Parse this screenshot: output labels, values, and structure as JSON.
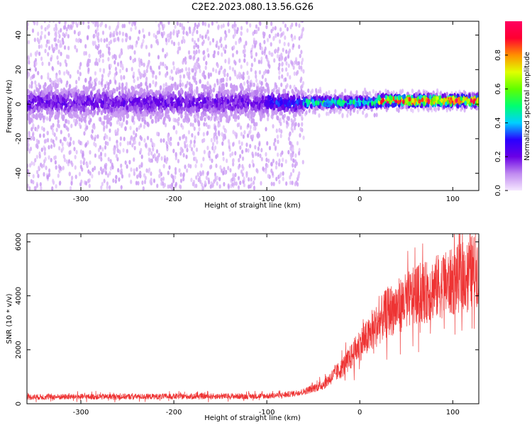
{
  "figure": {
    "title": "C2E2.2023.080.13.56.G26"
  },
  "chart_data": [
    {
      "type": "heatmap",
      "xlabel": "Height of straight line (km)",
      "ylabel": "Frequency (Hz)",
      "xlim": [
        -358,
        128
      ],
      "ylim": [
        -50,
        48
      ],
      "x_ticks": [
        -300,
        -200,
        -100,
        0,
        100
      ],
      "y_ticks": [
        -40,
        -20,
        0,
        20,
        40
      ],
      "colorbar": {
        "label": "Normalized spectral amplitude",
        "range": [
          0,
          1
        ],
        "ticks": [
          0.0,
          0.2,
          0.4,
          0.6,
          0.8
        ],
        "colormap": [
          "#f6e8ff",
          "#c08af0",
          "#6a00e6",
          "#2a00ff",
          "#00d0ff",
          "#00ff70",
          "#60ff00",
          "#e0ff00",
          "#ff9000",
          "#ff0030",
          "#ff0060"
        ]
      },
      "regions": [
        {
          "x": [
            -358,
            -100
          ],
          "center_freq": 1,
          "core_halfwidth": 8,
          "scatter_halfwidth": 50,
          "core_amplitude": 0.2
        },
        {
          "x": [
            -100,
            -60
          ],
          "center_freq": 1,
          "core_halfwidth": 6,
          "scatter_halfwidth": 48,
          "core_amplitude": 0.3
        },
        {
          "x": [
            -60,
            20
          ],
          "center_freq": 1,
          "core_halfwidth": 3,
          "scatter_halfwidth": 8,
          "core_amplitude": 0.5
        },
        {
          "x": [
            20,
            128
          ],
          "center_freq": 2,
          "core_halfwidth": 3,
          "scatter_halfwidth": 6,
          "core_amplitude": 0.85
        }
      ]
    },
    {
      "type": "line",
      "xlabel": "Height of straight line (km)",
      "ylabel": "SNR (10 * v/v)",
      "xlim": [
        -358,
        128
      ],
      "ylim": [
        0,
        6300
      ],
      "x_ticks": [
        -300,
        -200,
        -100,
        0,
        100
      ],
      "y_ticks": [
        0,
        2000,
        4000,
        6000
      ],
      "color": "#ee3333",
      "series": [
        {
          "x": [
            -358,
            -300,
            -200,
            -120,
            -100,
            -80,
            -60,
            -40,
            -20,
            -10,
            0,
            10,
            20,
            30,
            40,
            50,
            60,
            70,
            80,
            90,
            100,
            110,
            120,
            128
          ],
          "values": [
            250,
            260,
            270,
            280,
            290,
            330,
            450,
            700,
            1300,
            1700,
            2200,
            2500,
            3000,
            3400,
            3600,
            3800,
            4000,
            4100,
            4300,
            4400,
            4500,
            4700,
            4900,
            5000
          ]
        }
      ]
    }
  ]
}
